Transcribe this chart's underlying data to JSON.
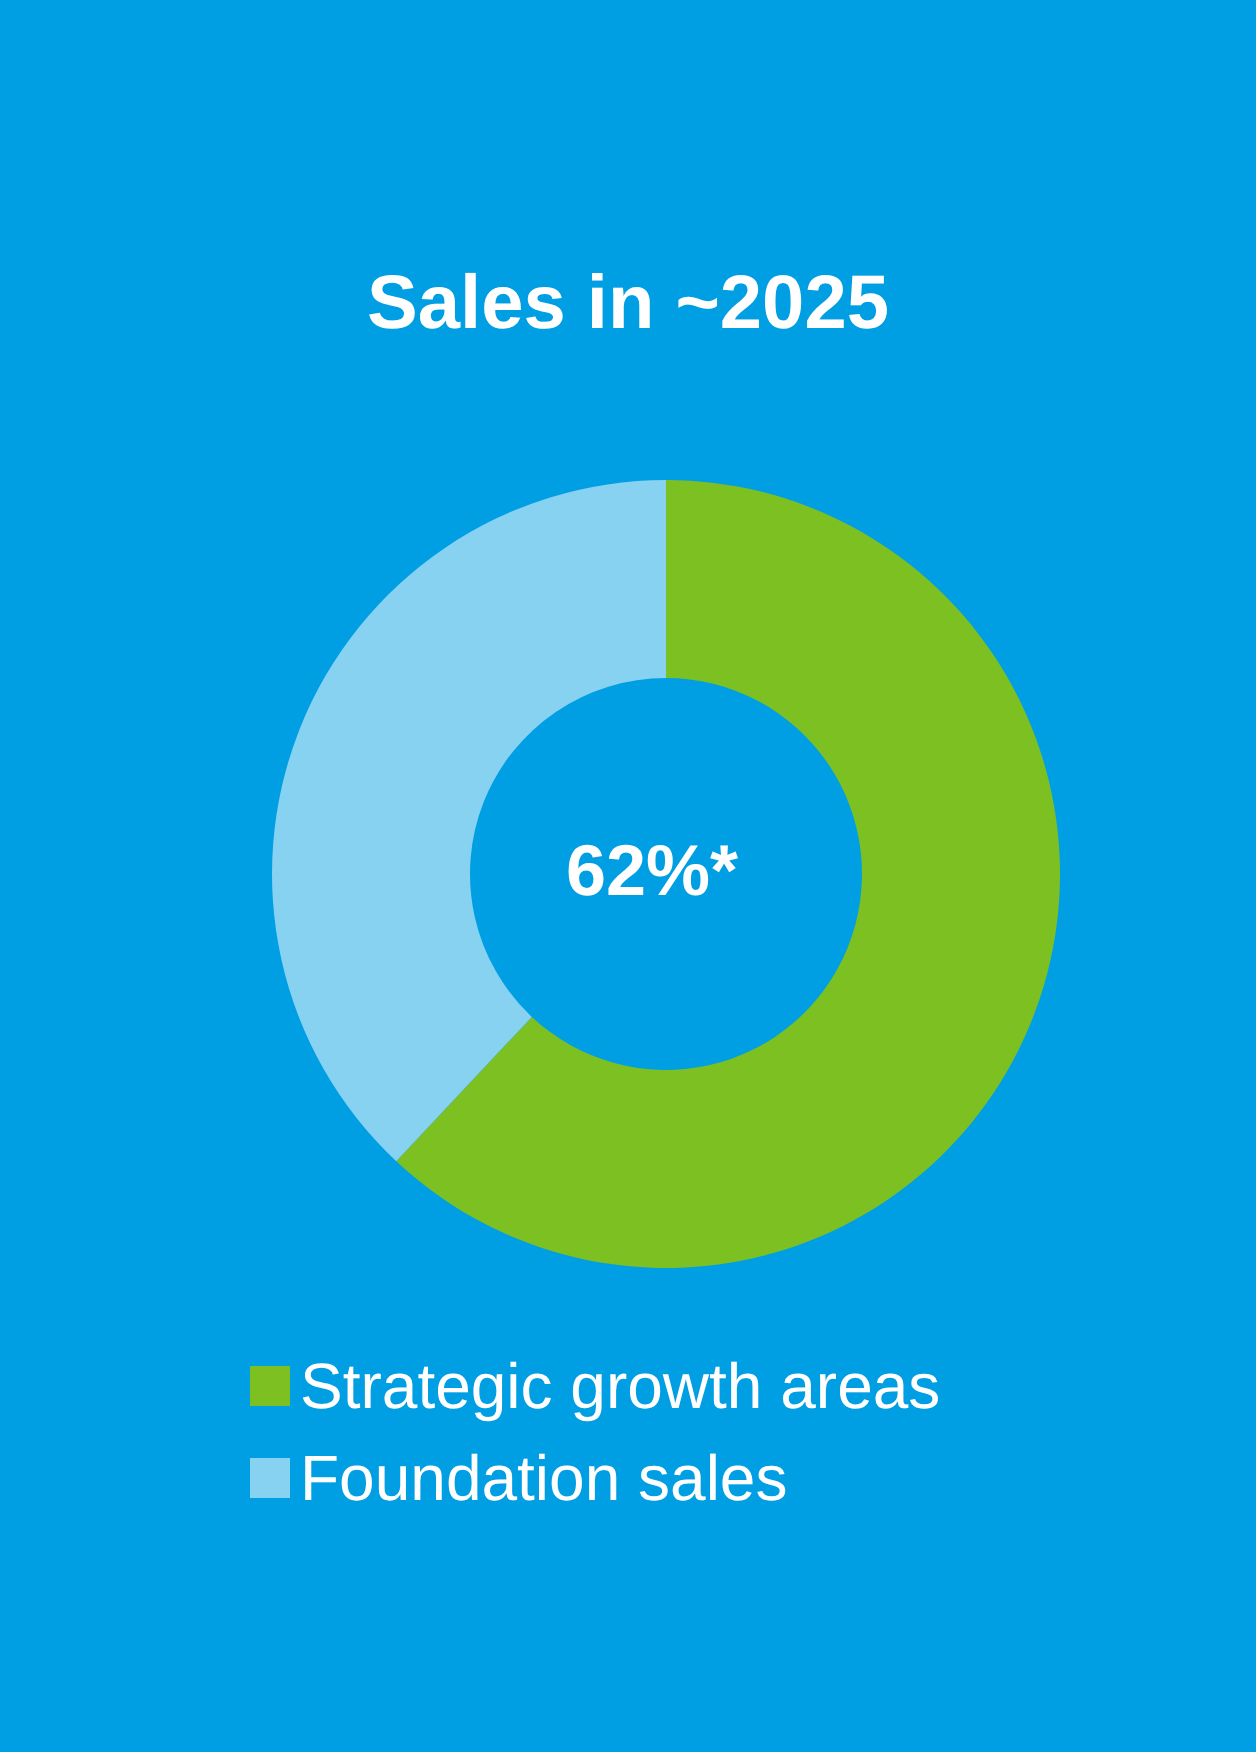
{
  "chart_data": {
    "type": "donut",
    "title": "Sales in ~2025",
    "categories": [
      "Strategic growth areas",
      "Foundation sales"
    ],
    "values": [
      62,
      38
    ],
    "colors": [
      "#7dc021",
      "#87d1f1"
    ],
    "annotations": [
      "62%*"
    ],
    "legend": "bottom"
  }
}
